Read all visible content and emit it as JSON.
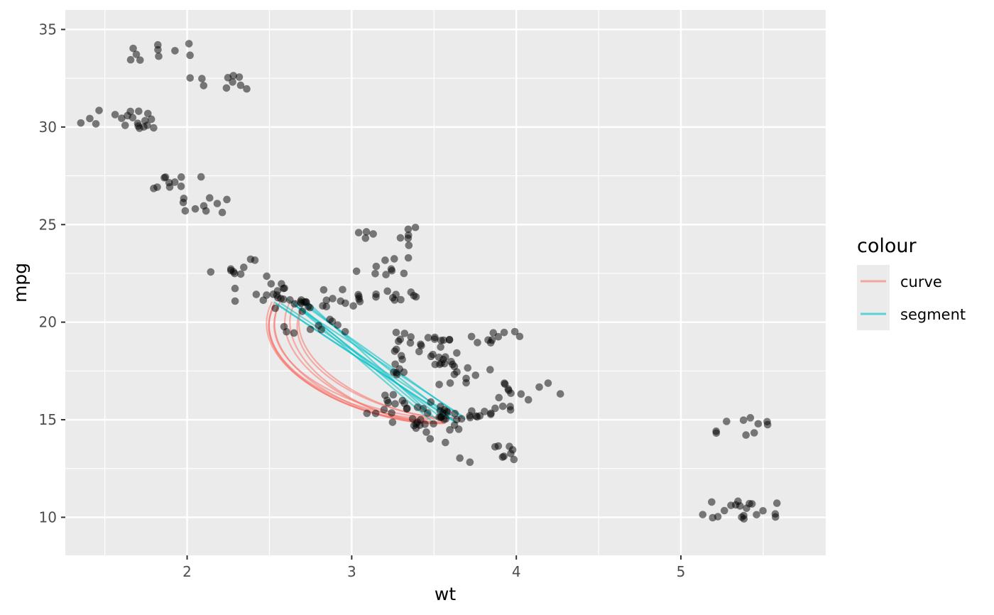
{
  "chart_data": {
    "type": "scatter",
    "xlabel": "wt",
    "ylabel": "mpg",
    "xlim": [
      1.26,
      5.88
    ],
    "ylim": [
      8.05,
      36.0
    ],
    "x_ticks": [
      2,
      3,
      4,
      5
    ],
    "y_ticks": [
      10,
      15,
      20,
      25,
      30,
      35
    ],
    "grid": true,
    "point_color": "#000000",
    "point_opacity": 0.5,
    "legend": {
      "title": "colour",
      "placement": "right",
      "entries": [
        {
          "label": "curve",
          "color": "#F8766D"
        },
        {
          "label": "segment",
          "color": "#00BFC4"
        }
      ]
    },
    "points": [
      [
        2.62,
        21.0
      ],
      [
        2.875,
        21.0
      ],
      [
        2.32,
        22.8
      ],
      [
        3.215,
        21.4
      ],
      [
        3.44,
        18.7
      ],
      [
        3.46,
        18.1
      ],
      [
        3.57,
        14.3
      ],
      [
        3.19,
        24.4
      ],
      [
        3.15,
        22.8
      ],
      [
        3.44,
        19.2
      ],
      [
        3.44,
        17.8
      ],
      [
        4.07,
        16.4
      ],
      [
        3.73,
        17.3
      ],
      [
        3.78,
        15.2
      ],
      [
        5.25,
        10.4
      ],
      [
        5.424,
        10.4
      ],
      [
        5.345,
        14.7
      ],
      [
        2.2,
        32.4
      ],
      [
        1.615,
        30.4
      ],
      [
        1.835,
        33.9
      ],
      [
        2.465,
        21.5
      ],
      [
        3.52,
        15.5
      ],
      [
        3.435,
        15.2
      ],
      [
        3.84,
        13.3
      ],
      [
        3.845,
        19.2
      ],
      [
        1.935,
        27.3
      ],
      [
        2.14,
        26.0
      ],
      [
        1.513,
        30.4
      ],
      [
        3.17,
        15.8
      ],
      [
        2.77,
        19.7
      ],
      [
        3.57,
        15.0
      ],
      [
        2.78,
        21.4
      ]
    ],
    "jitter": {
      "x": 0.2,
      "y": 0.5,
      "copies": 10
    },
    "segment": {
      "x": 2.62,
      "y": 21.0,
      "xend": 3.57,
      "yend": 15.0,
      "copies": 10,
      "jitter": 0.12
    },
    "curve": {
      "x": 2.62,
      "y": 21.0,
      "xend": 3.57,
      "yend": 15.0,
      "copies": 10,
      "jitter": 0.12,
      "curvature": 0.5
    }
  }
}
